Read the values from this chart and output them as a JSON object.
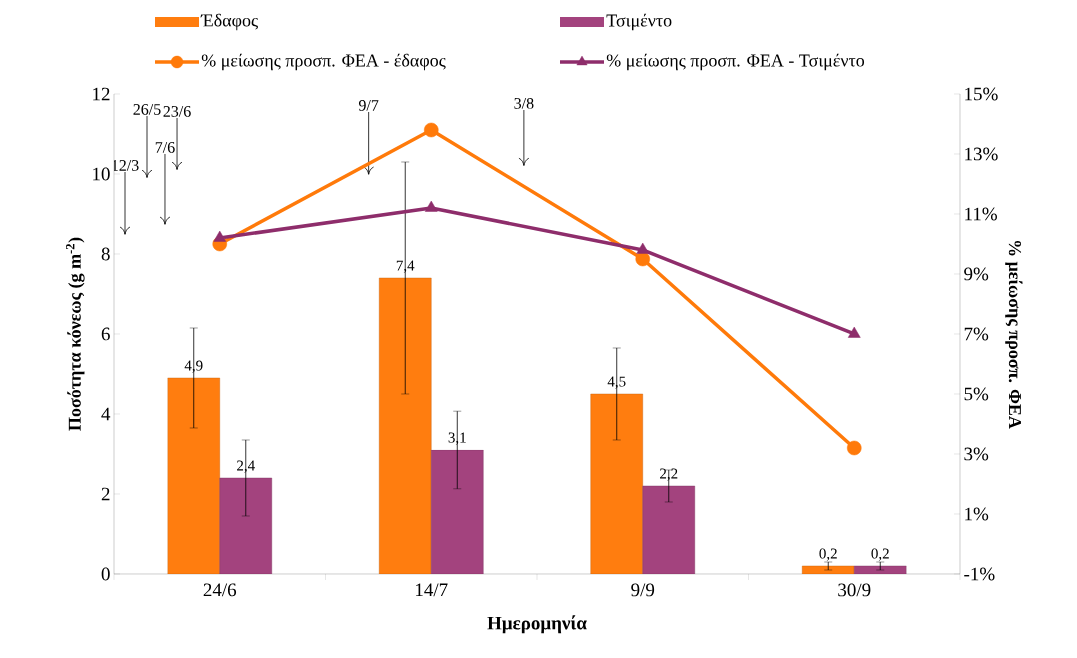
{
  "chart_data": {
    "type": "bar",
    "xlabel": "Ημερομηνία",
    "ylabel": "**Ποσότητα κόνεως (g m$^{-2}$)**",
    "y2label": "% μείωσης προσπ. ΦΕΑ",
    "categories": [
      "24/6",
      "14/7",
      "9/9",
      "30/9"
    ],
    "series": [
      {
        "name": "Έδαφος",
        "color": "#ff7d0f",
        "values": [
          4.9,
          7.4,
          4.5,
          0.2
        ],
        "errors": [
          1.25,
          2.9,
          1.15,
          0.1
        ],
        "value_labels": [
          "4,9",
          "7,4",
          "4,5",
          "0,2"
        ]
      },
      {
        "name": "Τσιμέντο",
        "color": "#a3437e",
        "values": [
          2.4,
          3.1,
          2.2,
          0.2
        ],
        "errors": [
          0.95,
          0.97,
          0.4,
          0.1
        ],
        "value_labels": [
          "2,4",
          "3,1",
          "2,2",
          "0,2"
        ]
      },
      {
        "name": "% μείωσης προσπ. ΦΕΑ - έδαφος",
        "type": "line",
        "axis": "y2",
        "marker": "circle",
        "color": "#ff7a0a",
        "values": [
          10.0,
          13.8,
          9.5,
          3.2
        ]
      },
      {
        "name": "% μείωσης προσπ. ΦΕΑ - Τσιμέντο",
        "type": "line",
        "axis": "y2",
        "marker": "triangle",
        "color": "#8e2d6b",
        "values": [
          10.2,
          11.2,
          9.8,
          7.0
        ]
      }
    ],
    "ylim": [
      0,
      12
    ],
    "yticks": [
      0,
      2,
      4,
      6,
      8,
      10,
      12
    ],
    "y2lim": [
      -1,
      15
    ],
    "y2ticks": [
      {
        "value": -1,
        "label": "-1%"
      },
      {
        "value": 1,
        "label": "1%"
      },
      {
        "value": 3,
        "label": "3%"
      },
      {
        "value": 5,
        "label": "5%"
      },
      {
        "value": 7,
        "label": "7%"
      },
      {
        "value": 9,
        "label": "9%"
      },
      {
        "value": 11,
        "label": "11%"
      },
      {
        "value": 13,
        "label": "13%"
      },
      {
        "value": 15,
        "label": "15%"
      }
    ],
    "annotations": [
      "12/3",
      "26/5",
      "7/6",
      "23/6",
      "9/7",
      "3/8"
    ],
    "legend": "top",
    "grid": false
  }
}
